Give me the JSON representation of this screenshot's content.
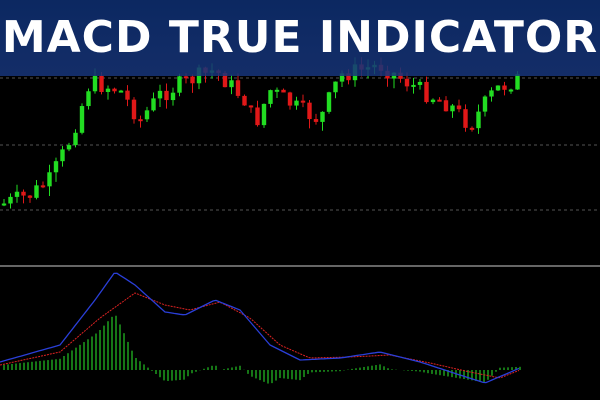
{
  "banner": {
    "title": "MACD TRUE INDICATOR"
  }
}
